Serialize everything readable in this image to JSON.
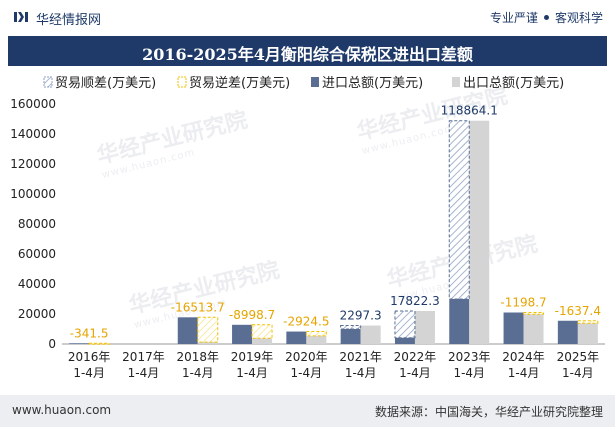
{
  "header": {
    "site_name": "华经情报网",
    "slogan_left": "专业严谨",
    "slogan_right": "客观科学"
  },
  "footer": {
    "url": "www.huaon.com",
    "source": "数据来源：中国海关，华经产业研究院整理"
  },
  "watermark": {
    "text": "华经产业研究院",
    "sub": "www.huaon.com"
  },
  "colors": {
    "title_bg": "#1f3a68",
    "surplus": "#7f93b8",
    "deficit": "#f2c200",
    "import": "#5a6e94",
    "export": "#d4d4d4",
    "label_surplus": "#1f3a68",
    "label_deficit": "#e6a400"
  },
  "chart_data": {
    "type": "bar",
    "title": "2016-2025年4月衡阳综合保税区进出口差额",
    "xlabel": "",
    "ylabel": "",
    "ylim": [
      0,
      160000
    ],
    "yticks": [
      0,
      20000,
      40000,
      60000,
      80000,
      100000,
      120000,
      140000,
      160000
    ],
    "categories": [
      "2016年\n1-4月",
      "2017年\n1-4月",
      "2018年\n1-4月",
      "2019年\n1-4月",
      "2020年\n1-4月",
      "2021年\n1-4月",
      "2022年\n1-4月",
      "2023年\n1-4月",
      "2024年\n1-4月",
      "2025年\n1-4月"
    ],
    "legend": [
      "贸易顺差(万美元)",
      "贸易逆差(万美元)",
      "进口总额(万美元)",
      "出口总额(万美元)"
    ],
    "legend_position": "top",
    "series": [
      {
        "name": "进口总额(万美元)",
        "values": [
          500,
          0,
          17800,
          12800,
          8300,
          10000,
          4200,
          30000,
          21000,
          15500
        ]
      },
      {
        "name": "出口总额(万美元)",
        "values": [
          158.5,
          0,
          1286.3,
          3801.3,
          5375.5,
          12297.3,
          22022.3,
          148864.1,
          19801.3,
          13862.6
        ]
      }
    ],
    "balance": [
      -341.5,
      null,
      -16513.7,
      -8998.7,
      -2924.5,
      2297.3,
      17822.3,
      118864.1,
      -1198.7,
      -1637.4
    ],
    "balance_labels": [
      "-341.5",
      "",
      "-16513.7",
      "-8998.7",
      "-2924.5",
      "2297.3",
      "17822.3",
      "118864.1",
      "-1198.7",
      "-1637.4"
    ]
  }
}
